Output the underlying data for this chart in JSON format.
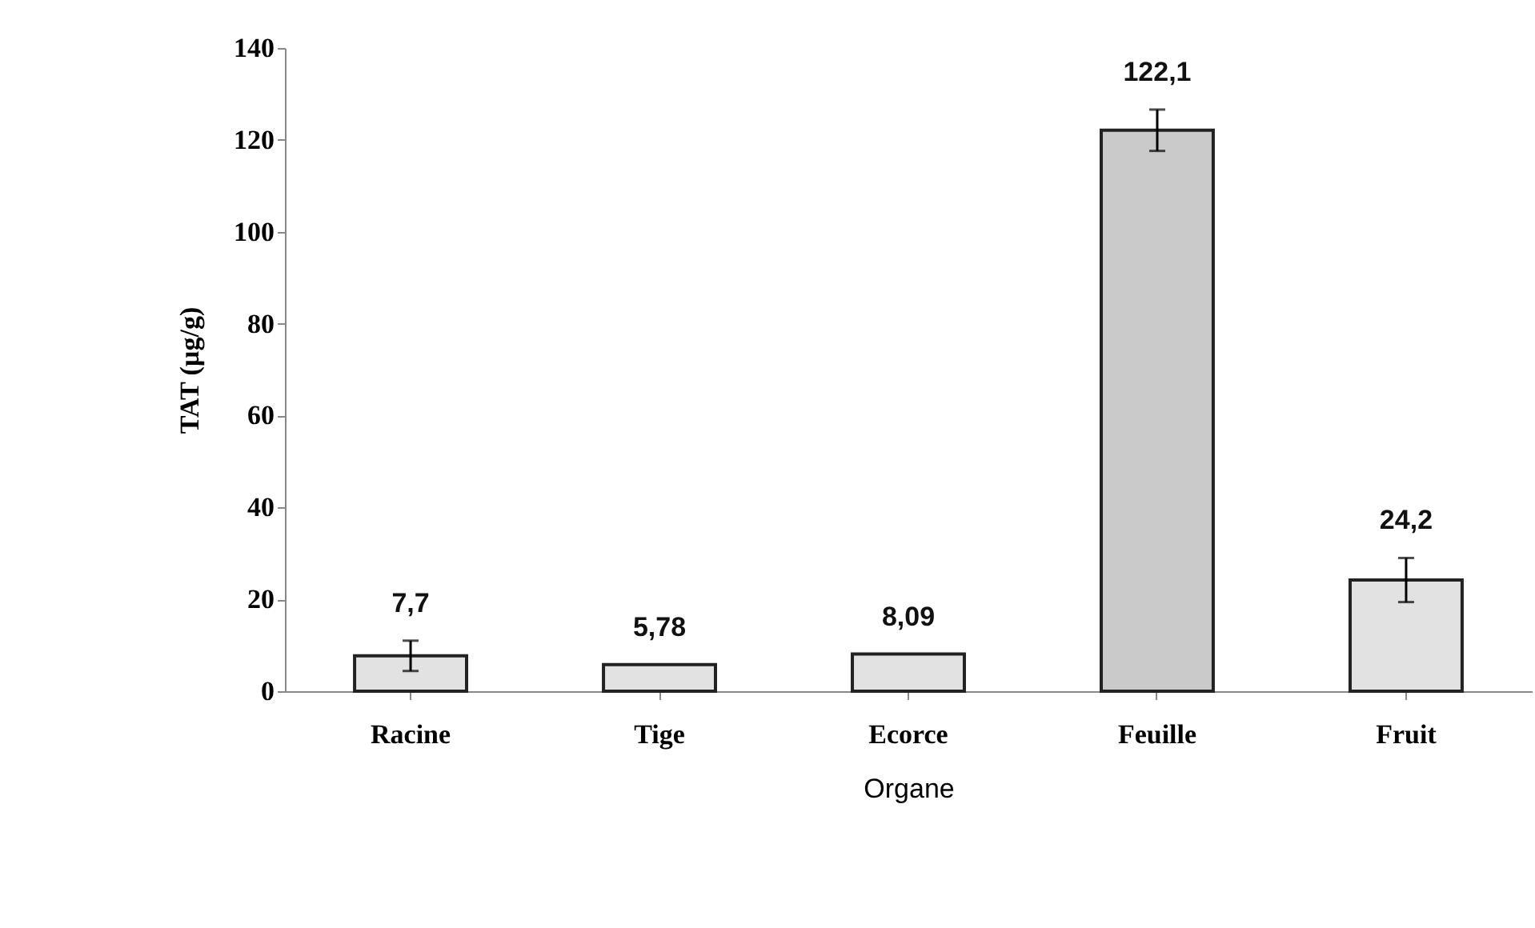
{
  "chart_data": {
    "type": "bar",
    "xlabel": "Organe",
    "ylabel": "TAT (µg/g)",
    "categories": [
      "Racine",
      "Tige",
      "Ecorce",
      "Feuille",
      "Fruit"
    ],
    "values": [
      7.7,
      5.78,
      8.09,
      122.1,
      24.2
    ],
    "colors": [
      "#e2e2e2",
      "#e2e2e2",
      "#e2e2e2",
      "#cacaca",
      "#e2e2e2"
    ],
    "errors": [
      3.3,
      null,
      null,
      4.5,
      4.8
    ],
    "value_labels": [
      "7,7",
      "5,78",
      "8,09",
      "122,1",
      "24,2"
    ],
    "ylim": [
      0,
      140
    ],
    "yticks": [
      0,
      20,
      40,
      60,
      80,
      100,
      120,
      140
    ],
    "grid": false,
    "legend": false
  }
}
